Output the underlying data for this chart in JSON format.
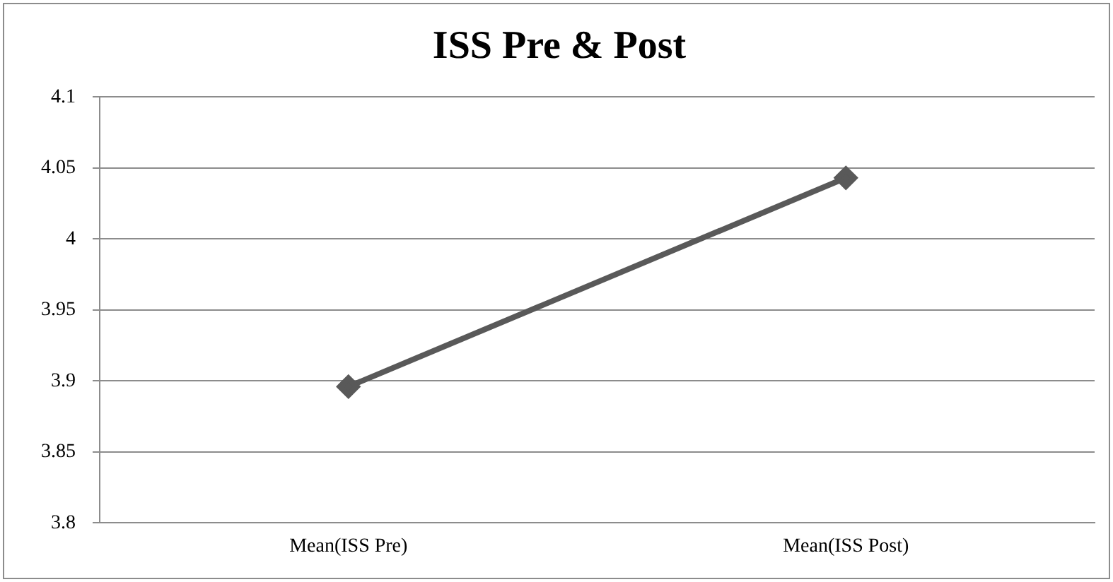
{
  "chart_data": {
    "type": "line",
    "title": "ISS Pre & Post",
    "categories": [
      "Mean(ISS Pre)",
      "Mean(ISS Post)"
    ],
    "series": [
      {
        "color": "#595959",
        "values": [
          3.896,
          4.043
        ]
      }
    ],
    "ylim": [
      3.8,
      4.1
    ],
    "yticks": [
      3.8,
      3.85,
      3.9,
      3.95,
      4,
      4.05,
      4.1
    ],
    "grid": "y",
    "legend": false,
    "marker": "diamond",
    "line_style": "solid"
  }
}
